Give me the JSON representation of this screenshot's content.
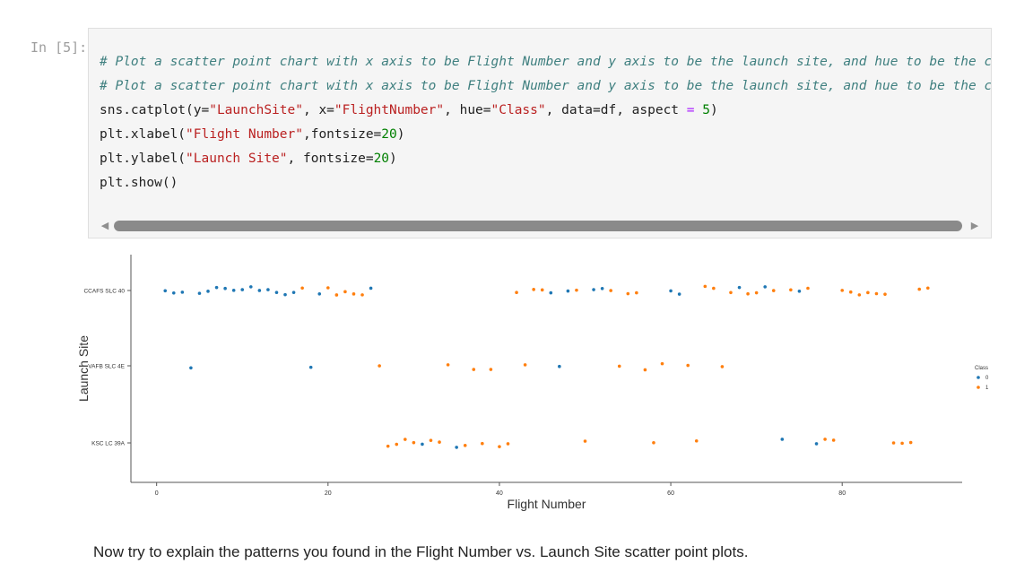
{
  "cell": {
    "prompt": "In [5]:",
    "code_lines": [
      [
        {
          "t": "# Plot a scatter point chart with x axis to be Flight Number and y axis to be the launch site, and hue to be the class value",
          "c": "cm"
        }
      ],
      [
        {
          "t": "# Plot a scatter point chart with x axis to be Flight Number and y axis to be the launch site, and hue to be the class value",
          "c": "cm"
        }
      ],
      [
        {
          "t": "sns.catplot(y=",
          "c": ""
        },
        {
          "t": "\"LaunchSite\"",
          "c": "st"
        },
        {
          "t": ", x=",
          "c": ""
        },
        {
          "t": "\"FlightNumber\"",
          "c": "st"
        },
        {
          "t": ", hue=",
          "c": ""
        },
        {
          "t": "\"Class\"",
          "c": "st"
        },
        {
          "t": ", data=df, aspect ",
          "c": ""
        },
        {
          "t": "=",
          "c": "op"
        },
        {
          "t": " ",
          "c": ""
        },
        {
          "t": "5",
          "c": "nu"
        },
        {
          "t": ")",
          "c": ""
        }
      ],
      [
        {
          "t": "plt.xlabel(",
          "c": ""
        },
        {
          "t": "\"Flight Number\"",
          "c": "st"
        },
        {
          "t": ",fontsize=",
          "c": ""
        },
        {
          "t": "20",
          "c": "nu"
        },
        {
          "t": ")",
          "c": ""
        }
      ],
      [
        {
          "t": "plt.ylabel(",
          "c": ""
        },
        {
          "t": "\"Launch Site\"",
          "c": "st"
        },
        {
          "t": ", fontsize=",
          "c": ""
        },
        {
          "t": "20",
          "c": "nu"
        },
        {
          "t": ")",
          "c": ""
        }
      ],
      [
        {
          "t": "plt.show()",
          "c": ""
        }
      ]
    ],
    "scroll_left_glyph": "◀",
    "scroll_right_glyph": "▶"
  },
  "explain_text": "Now try to explain the patterns you found in the Flight Number vs. Launch Site scatter point plots.",
  "chart_data": {
    "type": "scatter",
    "xlabel": "Flight Number",
    "ylabel": "Launch Site",
    "xlim": [
      -3,
      94
    ],
    "xticks": [
      0,
      20,
      40,
      60,
      80
    ],
    "categories": [
      "CCAFS SLC 40",
      "VAFB SLC 4E",
      "KSC LC 39A"
    ],
    "legend": {
      "title": "Class",
      "placement": "right"
    },
    "colors": {
      "0": "#1f77b4",
      "1": "#ff7f0e"
    },
    "grid": false,
    "series": [
      {
        "name": "0",
        "points": [
          [
            1,
            "CCAFS SLC 40"
          ],
          [
            2,
            "CCAFS SLC 40"
          ],
          [
            3,
            "CCAFS SLC 40"
          ],
          [
            5,
            "CCAFS SLC 40"
          ],
          [
            6,
            "CCAFS SLC 40"
          ],
          [
            7,
            "CCAFS SLC 40"
          ],
          [
            8,
            "CCAFS SLC 40"
          ],
          [
            9,
            "CCAFS SLC 40"
          ],
          [
            10,
            "CCAFS SLC 40"
          ],
          [
            11,
            "CCAFS SLC 40"
          ],
          [
            12,
            "CCAFS SLC 40"
          ],
          [
            13,
            "CCAFS SLC 40"
          ],
          [
            14,
            "CCAFS SLC 40"
          ],
          [
            15,
            "CCAFS SLC 40"
          ],
          [
            16,
            "CCAFS SLC 40"
          ],
          [
            19,
            "CCAFS SLC 40"
          ],
          [
            25,
            "CCAFS SLC 40"
          ],
          [
            46,
            "CCAFS SLC 40"
          ],
          [
            48,
            "CCAFS SLC 40"
          ],
          [
            51,
            "CCAFS SLC 40"
          ],
          [
            52,
            "CCAFS SLC 40"
          ],
          [
            60,
            "CCAFS SLC 40"
          ],
          [
            61,
            "CCAFS SLC 40"
          ],
          [
            68,
            "CCAFS SLC 40"
          ],
          [
            71,
            "CCAFS SLC 40"
          ],
          [
            75,
            "CCAFS SLC 40"
          ],
          [
            4,
            "VAFB SLC 4E"
          ],
          [
            18,
            "VAFB SLC 4E"
          ],
          [
            47,
            "VAFB SLC 4E"
          ],
          [
            31,
            "KSC LC 39A"
          ],
          [
            35,
            "KSC LC 39A"
          ],
          [
            73,
            "KSC LC 39A"
          ],
          [
            77,
            "KSC LC 39A"
          ]
        ]
      },
      {
        "name": "1",
        "points": [
          [
            17,
            "CCAFS SLC 40"
          ],
          [
            20,
            "CCAFS SLC 40"
          ],
          [
            21,
            "CCAFS SLC 40"
          ],
          [
            22,
            "CCAFS SLC 40"
          ],
          [
            23,
            "CCAFS SLC 40"
          ],
          [
            24,
            "CCAFS SLC 40"
          ],
          [
            42,
            "CCAFS SLC 40"
          ],
          [
            44,
            "CCAFS SLC 40"
          ],
          [
            45,
            "CCAFS SLC 40"
          ],
          [
            49,
            "CCAFS SLC 40"
          ],
          [
            53,
            "CCAFS SLC 40"
          ],
          [
            55,
            "CCAFS SLC 40"
          ],
          [
            56,
            "CCAFS SLC 40"
          ],
          [
            64,
            "CCAFS SLC 40"
          ],
          [
            65,
            "CCAFS SLC 40"
          ],
          [
            67,
            "CCAFS SLC 40"
          ],
          [
            69,
            "CCAFS SLC 40"
          ],
          [
            70,
            "CCAFS SLC 40"
          ],
          [
            72,
            "CCAFS SLC 40"
          ],
          [
            74,
            "CCAFS SLC 40"
          ],
          [
            76,
            "CCAFS SLC 40"
          ],
          [
            80,
            "CCAFS SLC 40"
          ],
          [
            81,
            "CCAFS SLC 40"
          ],
          [
            82,
            "CCAFS SLC 40"
          ],
          [
            83,
            "CCAFS SLC 40"
          ],
          [
            84,
            "CCAFS SLC 40"
          ],
          [
            85,
            "CCAFS SLC 40"
          ],
          [
            89,
            "CCAFS SLC 40"
          ],
          [
            90,
            "CCAFS SLC 40"
          ],
          [
            26,
            "VAFB SLC 4E"
          ],
          [
            34,
            "VAFB SLC 4E"
          ],
          [
            37,
            "VAFB SLC 4E"
          ],
          [
            39,
            "VAFB SLC 4E"
          ],
          [
            43,
            "VAFB SLC 4E"
          ],
          [
            54,
            "VAFB SLC 4E"
          ],
          [
            57,
            "VAFB SLC 4E"
          ],
          [
            59,
            "VAFB SLC 4E"
          ],
          [
            62,
            "VAFB SLC 4E"
          ],
          [
            66,
            "VAFB SLC 4E"
          ],
          [
            27,
            "KSC LC 39A"
          ],
          [
            28,
            "KSC LC 39A"
          ],
          [
            29,
            "KSC LC 39A"
          ],
          [
            30,
            "KSC LC 39A"
          ],
          [
            32,
            "KSC LC 39A"
          ],
          [
            33,
            "KSC LC 39A"
          ],
          [
            36,
            "KSC LC 39A"
          ],
          [
            38,
            "KSC LC 39A"
          ],
          [
            40,
            "KSC LC 39A"
          ],
          [
            41,
            "KSC LC 39A"
          ],
          [
            50,
            "KSC LC 39A"
          ],
          [
            58,
            "KSC LC 39A"
          ],
          [
            63,
            "KSC LC 39A"
          ],
          [
            78,
            "KSC LC 39A"
          ],
          [
            79,
            "KSC LC 39A"
          ],
          [
            86,
            "KSC LC 39A"
          ],
          [
            87,
            "KSC LC 39A"
          ],
          [
            88,
            "KSC LC 39A"
          ]
        ]
      }
    ]
  }
}
